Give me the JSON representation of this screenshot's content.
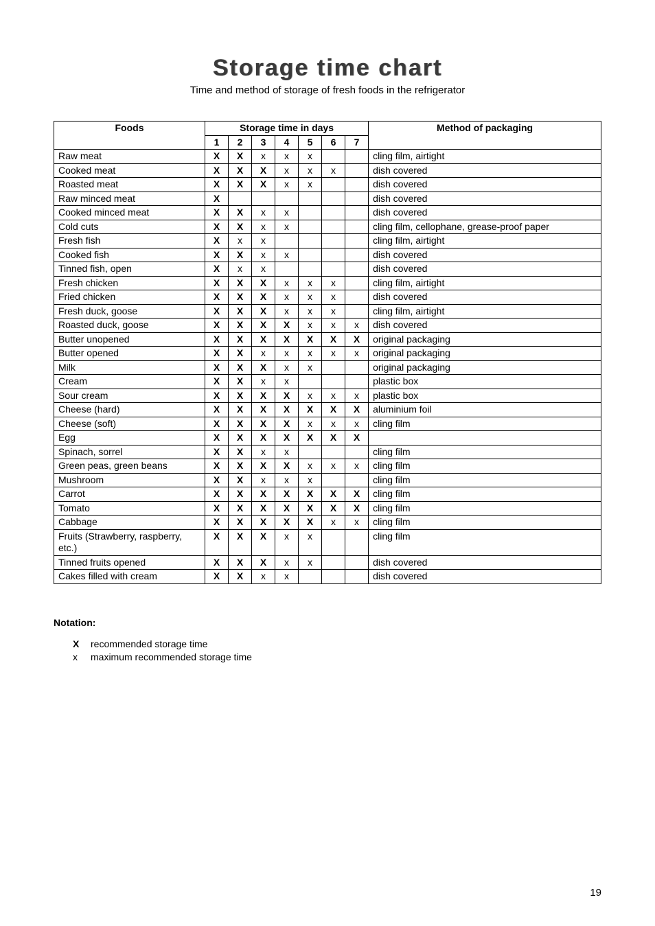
{
  "title": "Storage time chart",
  "subtitle": "Time and method of storage of fresh foods in the refrigerator",
  "headers": {
    "foods": "Foods",
    "storage_span": "Storage time in days",
    "method": "Method of packaging",
    "days": [
      "1",
      "2",
      "3",
      "4",
      "5",
      "6",
      "7"
    ]
  },
  "marks": {
    "rec": "X",
    "max": "x",
    "none": ""
  },
  "rows": [
    {
      "food": "Raw meat",
      "days": [
        "rec",
        "rec",
        "max",
        "max",
        "max",
        "none",
        "none"
      ],
      "method": "cling film, airtight"
    },
    {
      "food": "Cooked meat",
      "days": [
        "rec",
        "rec",
        "rec",
        "max",
        "max",
        "max",
        "none"
      ],
      "method": "dish covered"
    },
    {
      "food": "Roasted meat",
      "days": [
        "rec",
        "rec",
        "rec",
        "max",
        "max",
        "none",
        "none"
      ],
      "method": "dish covered"
    },
    {
      "food": "Raw minced meat",
      "days": [
        "rec",
        "none",
        "none",
        "none",
        "none",
        "none",
        "none"
      ],
      "method": "dish covered"
    },
    {
      "food": "Cooked minced meat",
      "days": [
        "rec",
        "rec",
        "max",
        "max",
        "none",
        "none",
        "none"
      ],
      "method": "dish covered"
    },
    {
      "food": "Cold cuts",
      "days": [
        "rec",
        "rec",
        "max",
        "max",
        "none",
        "none",
        "none"
      ],
      "method": "cling film, cellophane, grease-proof paper"
    },
    {
      "food": "Fresh fish",
      "days": [
        "rec",
        "max",
        "max",
        "none",
        "none",
        "none",
        "none"
      ],
      "method": "cling film, airtight"
    },
    {
      "food": "Cooked fish",
      "days": [
        "rec",
        "rec",
        "max",
        "max",
        "none",
        "none",
        "none"
      ],
      "method": "dish covered"
    },
    {
      "food": "Tinned fish, open",
      "days": [
        "rec",
        "max",
        "max",
        "none",
        "none",
        "none",
        "none"
      ],
      "method": "dish covered"
    },
    {
      "food": "Fresh chicken",
      "days": [
        "rec",
        "rec",
        "rec",
        "max",
        "max",
        "max",
        "none"
      ],
      "method": "cling film, airtight"
    },
    {
      "food": "Fried chicken",
      "days": [
        "rec",
        "rec",
        "rec",
        "max",
        "max",
        "max",
        "none"
      ],
      "method": "dish covered"
    },
    {
      "food": "Fresh duck, goose",
      "days": [
        "rec",
        "rec",
        "rec",
        "max",
        "max",
        "max",
        "none"
      ],
      "method": "cling film, airtight"
    },
    {
      "food": "Roasted duck, goose",
      "days": [
        "rec",
        "rec",
        "rec",
        "rec",
        "max",
        "max",
        "max"
      ],
      "method": "dish covered"
    },
    {
      "food": "Butter unopened",
      "days": [
        "rec",
        "rec",
        "rec",
        "rec",
        "rec",
        "rec",
        "rec"
      ],
      "method": "original packaging"
    },
    {
      "food": "Butter opened",
      "days": [
        "rec",
        "rec",
        "max",
        "max",
        "max",
        "max",
        "max"
      ],
      "method": "original packaging"
    },
    {
      "food": "Milk",
      "days": [
        "rec",
        "rec",
        "rec",
        "max",
        "max",
        "none",
        "none"
      ],
      "method": "original packaging"
    },
    {
      "food": "Cream",
      "days": [
        "rec",
        "rec",
        "max",
        "max",
        "none",
        "none",
        "none"
      ],
      "method": "plastic box"
    },
    {
      "food": "Sour cream",
      "days": [
        "rec",
        "rec",
        "rec",
        "rec",
        "max",
        "max",
        "max"
      ],
      "method": "plastic box"
    },
    {
      "food": "Cheese (hard)",
      "days": [
        "rec",
        "rec",
        "rec",
        "rec",
        "rec",
        "rec",
        "rec"
      ],
      "method": "aluminium foil"
    },
    {
      "food": "Cheese (soft)",
      "days": [
        "rec",
        "rec",
        "rec",
        "rec",
        "max",
        "max",
        "max"
      ],
      "method": "cling film"
    },
    {
      "food": "Egg",
      "days": [
        "rec",
        "rec",
        "rec",
        "rec",
        "rec",
        "rec",
        "rec"
      ],
      "method": ""
    },
    {
      "food": "Spinach, sorrel",
      "days": [
        "rec",
        "rec",
        "max",
        "max",
        "none",
        "none",
        "none"
      ],
      "method": "cling film"
    },
    {
      "food": "Green peas, green beans",
      "days": [
        "rec",
        "rec",
        "rec",
        "rec",
        "max",
        "max",
        "max"
      ],
      "method": "cling film"
    },
    {
      "food": "Mushroom",
      "days": [
        "rec",
        "rec",
        "max",
        "max",
        "max",
        "none",
        "none"
      ],
      "method": "cling film"
    },
    {
      "food": "Carrot",
      "days": [
        "rec",
        "rec",
        "rec",
        "rec",
        "rec",
        "rec",
        "rec"
      ],
      "method": "cling film"
    },
    {
      "food": "Tomato",
      "days": [
        "rec",
        "rec",
        "rec",
        "rec",
        "rec",
        "rec",
        "rec"
      ],
      "method": "cling film"
    },
    {
      "food": "Cabbage",
      "days": [
        "rec",
        "rec",
        "rec",
        "rec",
        "rec",
        "max",
        "max"
      ],
      "method": "cling film"
    },
    {
      "food": "Fruits (Strawberry, raspberry, etc.)",
      "days": [
        "rec",
        "rec",
        "rec",
        "max",
        "max",
        "none",
        "none"
      ],
      "method": "cling film"
    },
    {
      "food": "Tinned fruits opened",
      "days": [
        "rec",
        "rec",
        "rec",
        "max",
        "max",
        "none",
        "none"
      ],
      "method": "dish covered"
    },
    {
      "food": "Cakes filled with cream",
      "days": [
        "rec",
        "rec",
        "max",
        "max",
        "none",
        "none",
        "none"
      ],
      "method": "dish covered"
    }
  ],
  "notation": {
    "title": "Notation:",
    "items": [
      {
        "sym": "X",
        "bold": true,
        "text": "recommended storage time"
      },
      {
        "sym": "x",
        "bold": false,
        "text": "maximum recommended storage time"
      }
    ]
  },
  "page_number": "19"
}
